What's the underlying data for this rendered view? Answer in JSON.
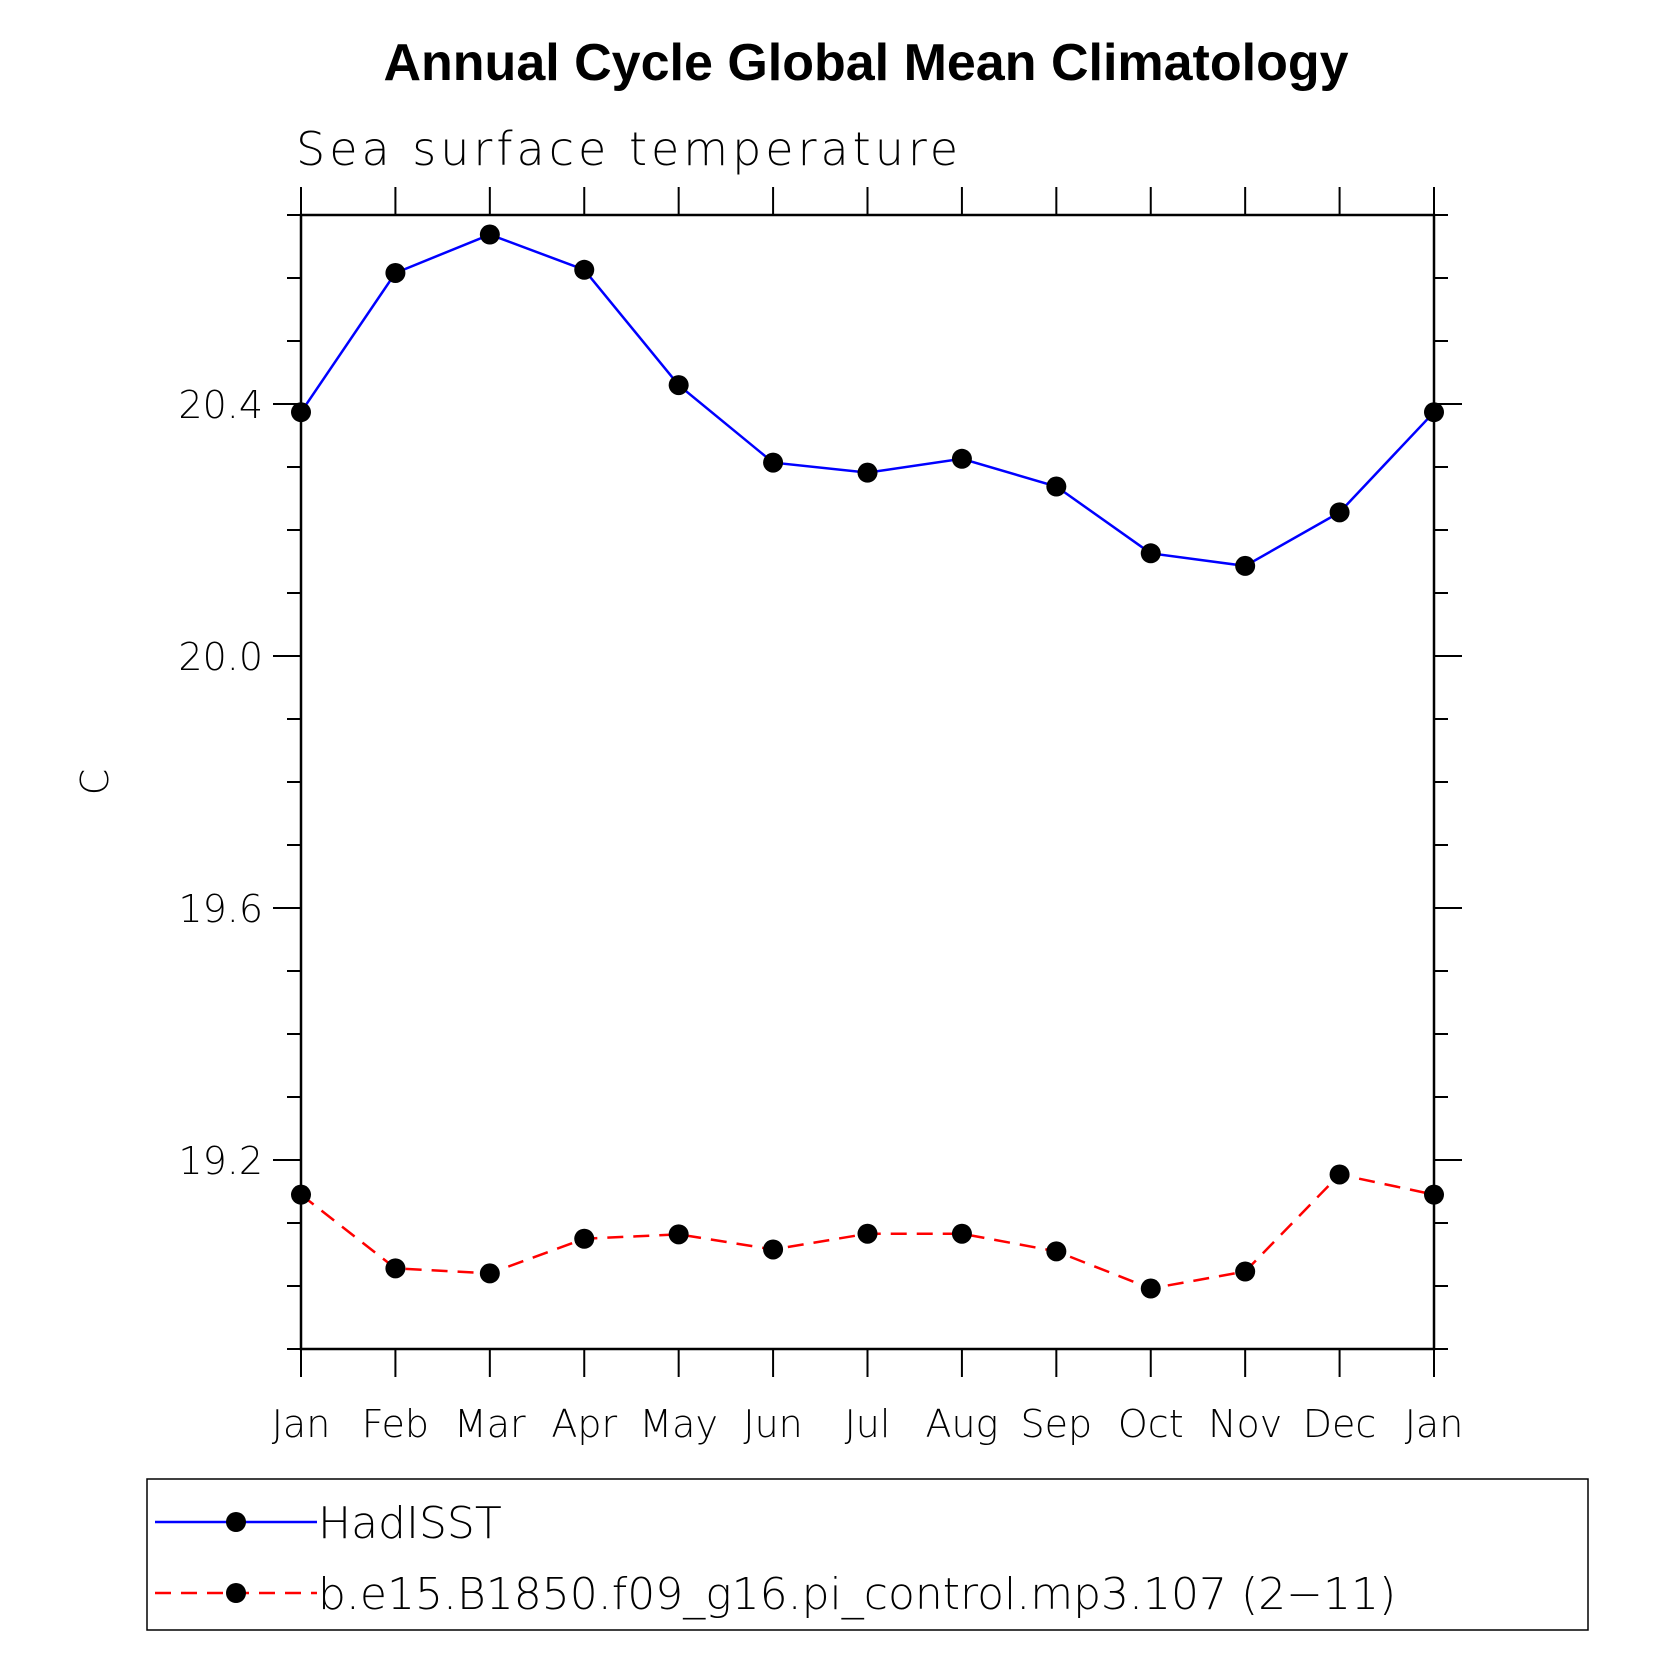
{
  "chart_data": {
    "type": "line",
    "title": "Annual Cycle Global Mean Climatology",
    "subtitle": "Sea surface temperature",
    "xlabel": "",
    "ylabel": "C",
    "categories": [
      "Jan",
      "Feb",
      "Mar",
      "Apr",
      "May",
      "Jun",
      "Jul",
      "Aug",
      "Sep",
      "Oct",
      "Nov",
      "Dec",
      "Jan"
    ],
    "ylim": [
      18.9,
      20.7
    ],
    "yticks_major": [
      19.2,
      19.6,
      20.0,
      20.4
    ],
    "ytick_labels": [
      "19.2",
      "19.6",
      "20.0",
      "20.4"
    ],
    "series": [
      {
        "name": "HadISST",
        "color": "#0000ff",
        "dash": "solid",
        "marker": "filled-circle",
        "values": [
          20.387,
          20.608,
          20.669,
          20.613,
          20.43,
          20.307,
          20.291,
          20.313,
          20.269,
          20.163,
          20.143,
          20.228,
          20.387
        ]
      },
      {
        "name": "b.e15.B1850.f09_g16.pi_control.mp3.107 (2-11)",
        "color": "#ff0000",
        "dash": "dashed",
        "marker": "filled-circle",
        "values": [
          19.145,
          19.028,
          19.02,
          19.075,
          19.082,
          19.058,
          19.083,
          19.083,
          19.055,
          18.996,
          19.023,
          19.177,
          19.145
        ]
      }
    ],
    "legend": {
      "position": "bottom",
      "entries": [
        "HadISST",
        "b.e15.B1850.f09_g16.pi_control.mp3.107 (2−11)"
      ]
    },
    "grid": false
  }
}
